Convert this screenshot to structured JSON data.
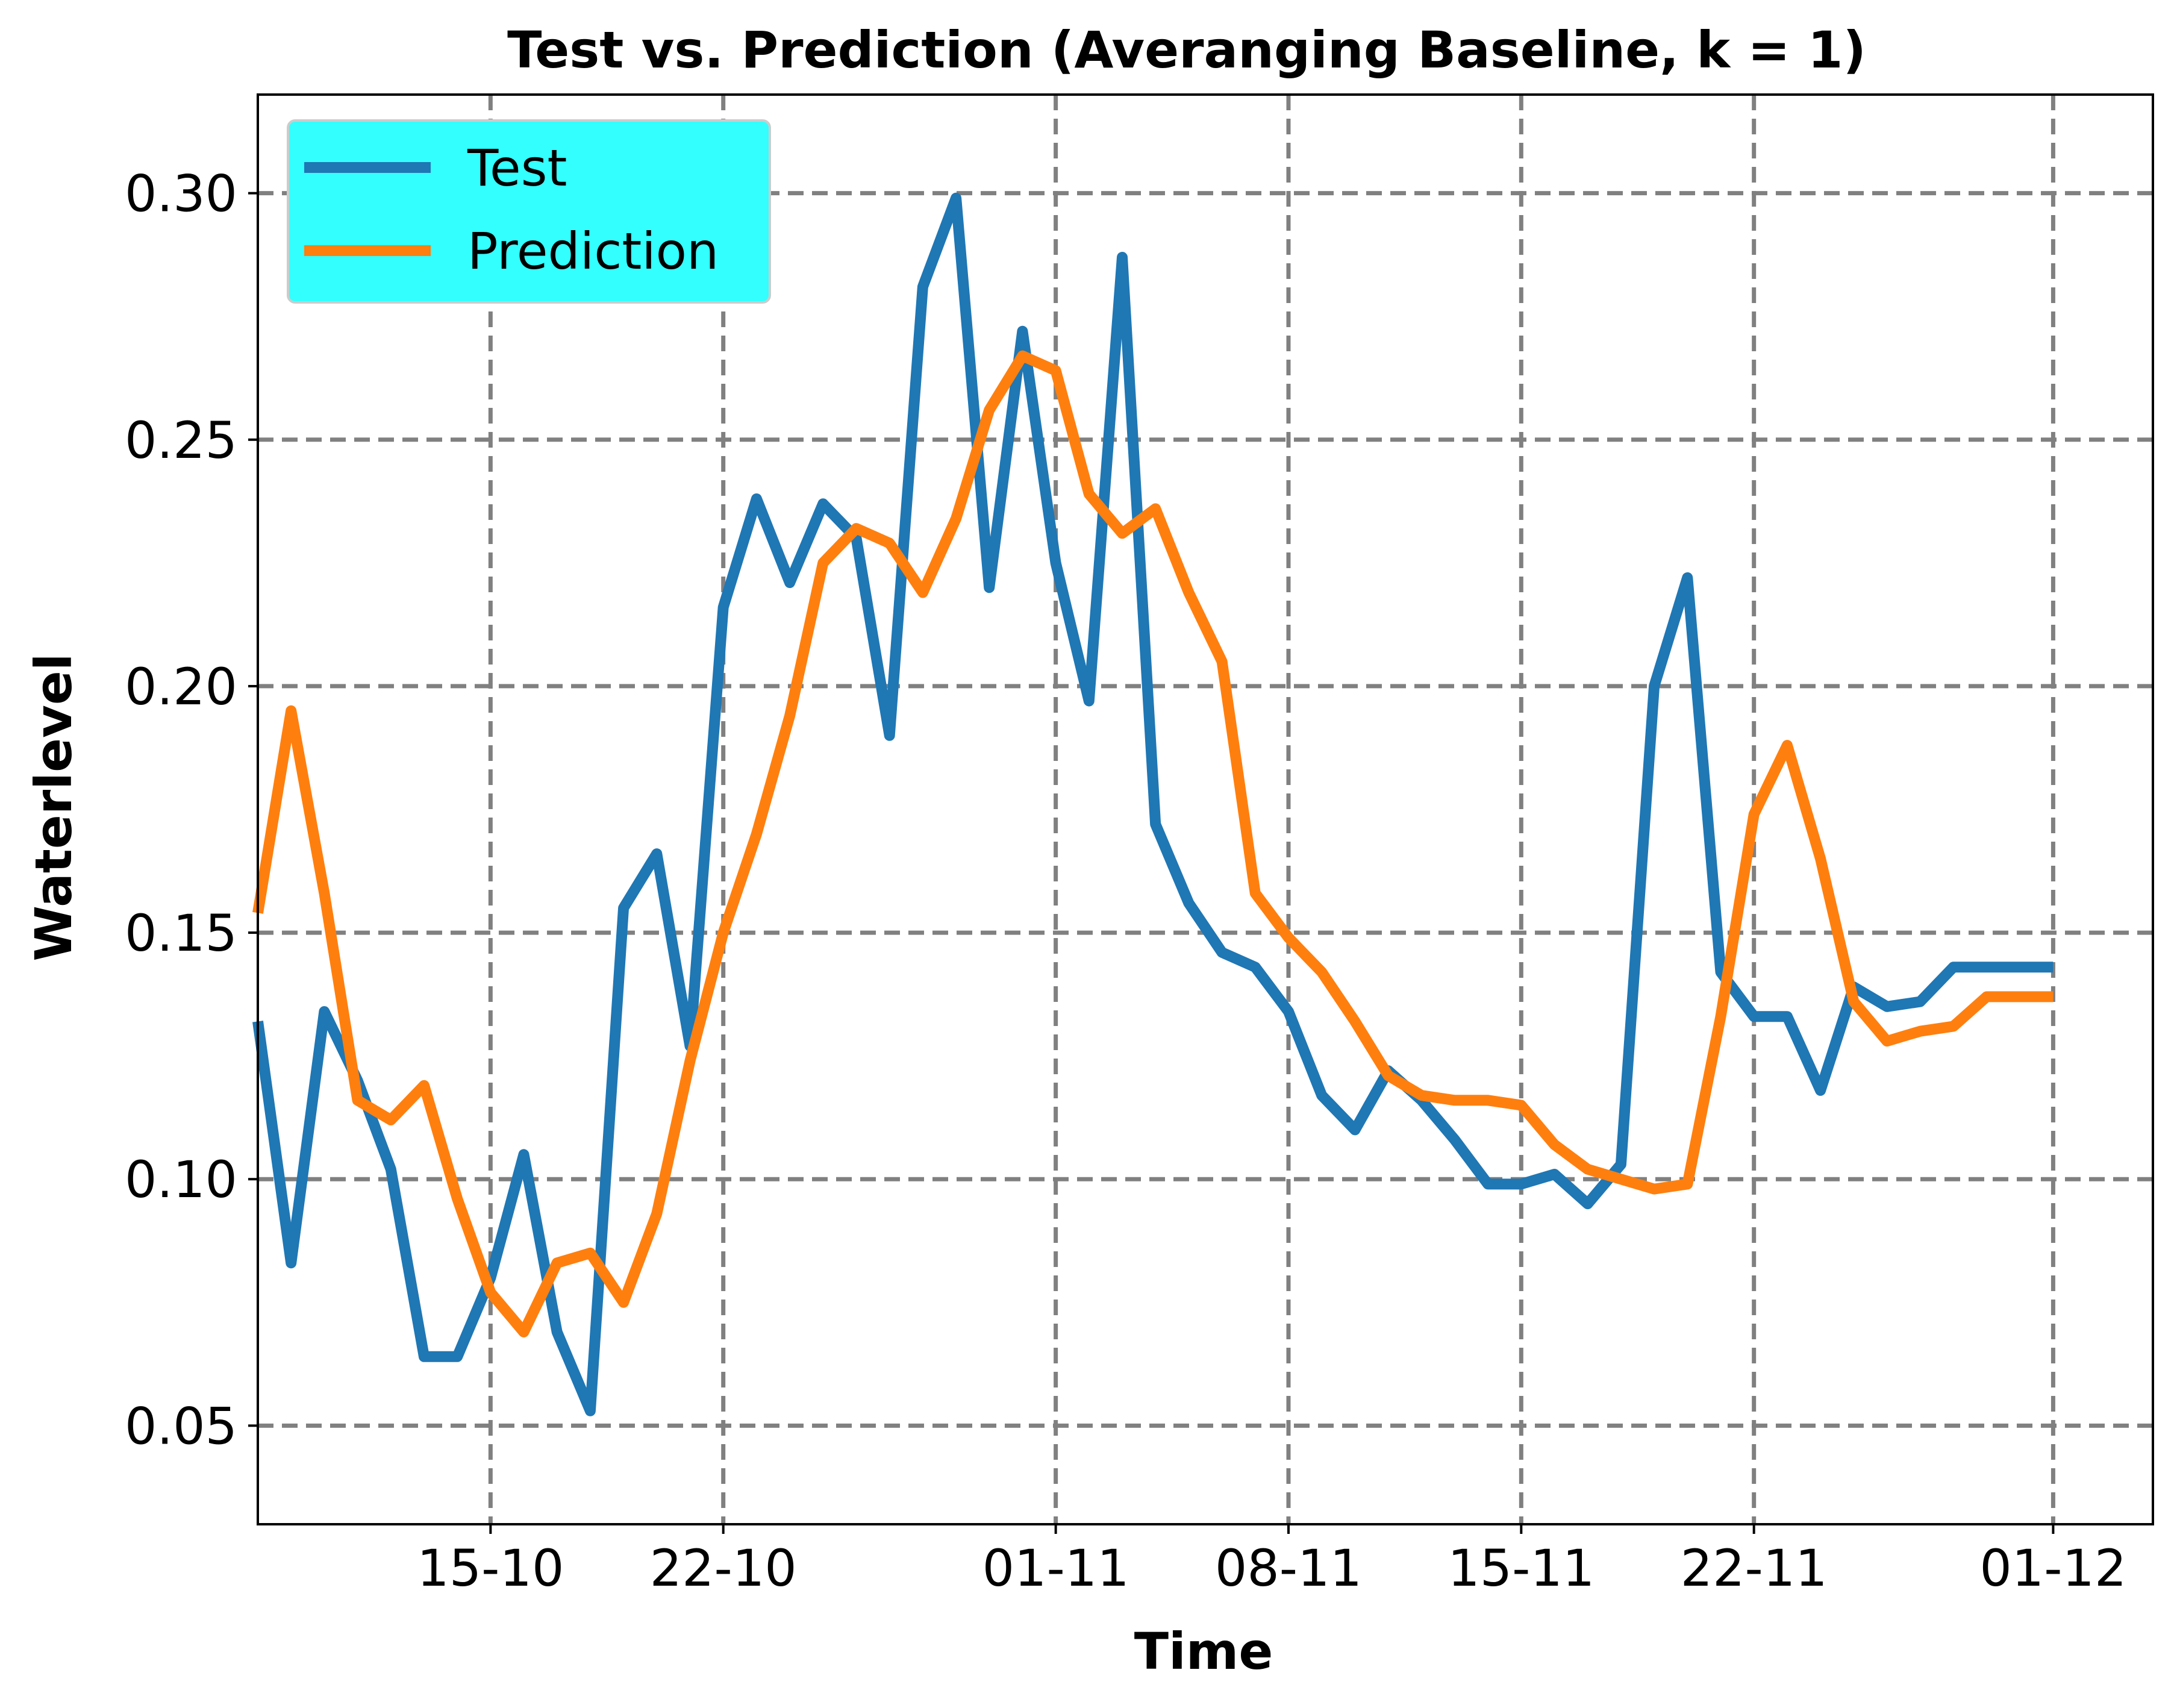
{
  "chart_data": {
    "type": "line",
    "title": "Test vs. Prediction (Averanging Baseline, k = 1)",
    "xlabel": "Time",
    "ylabel": "Waterlevel",
    "x_tick_labels": [
      "15-10",
      "22-10",
      "01-11",
      "08-11",
      "15-11",
      "22-11",
      "01-12"
    ],
    "x_tick_dates": [
      "2022-10-15",
      "2022-10-22",
      "2022-11-01",
      "2022-11-08",
      "2022-11-15",
      "2022-11-22",
      "2022-12-01"
    ],
    "y_ticks": [
      0.05,
      0.1,
      0.15,
      0.2,
      0.25,
      0.3
    ],
    "y_tick_labels": [
      "0.05",
      "0.10",
      "0.15",
      "0.20",
      "0.25",
      "0.30"
    ],
    "xlim": [
      "2022-10-08",
      "2022-12-04"
    ],
    "ylim": [
      0.03,
      0.32
    ],
    "grid": true,
    "grid_style": "dashed",
    "legend_position": "top-left",
    "legend_bg": "#33ffff",
    "x": [
      "2022-10-08",
      "2022-10-09",
      "2022-10-10",
      "2022-10-11",
      "2022-10-12",
      "2022-10-13",
      "2022-10-14",
      "2022-10-15",
      "2022-10-16",
      "2022-10-17",
      "2022-10-18",
      "2022-10-19",
      "2022-10-20",
      "2022-10-21",
      "2022-10-22",
      "2022-10-23",
      "2022-10-24",
      "2022-10-25",
      "2022-10-26",
      "2022-10-27",
      "2022-10-28",
      "2022-10-29",
      "2022-10-30",
      "2022-10-31",
      "2022-11-01",
      "2022-11-02",
      "2022-11-03",
      "2022-11-04",
      "2022-11-05",
      "2022-11-06",
      "2022-11-07",
      "2022-11-08",
      "2022-11-09",
      "2022-11-10",
      "2022-11-11",
      "2022-11-12",
      "2022-11-13",
      "2022-11-14",
      "2022-11-15",
      "2022-11-16",
      "2022-11-17",
      "2022-11-18",
      "2022-11-19",
      "2022-11-20",
      "2022-11-21",
      "2022-11-22",
      "2022-11-23",
      "2022-11-24",
      "2022-11-25",
      "2022-11-26",
      "2022-11-27",
      "2022-11-28",
      "2022-11-29",
      "2022-11-30",
      "2022-12-01"
    ],
    "series": [
      {
        "name": "Test",
        "color": "#1f77b4",
        "values": [
          0.132,
          0.083,
          0.134,
          0.12,
          0.102,
          0.064,
          0.064,
          0.08,
          0.105,
          0.069,
          0.053,
          0.155,
          0.166,
          0.127,
          0.216,
          0.238,
          0.221,
          0.237,
          0.23,
          0.19,
          0.281,
          0.299,
          0.22,
          0.272,
          0.225,
          0.197,
          0.287,
          0.172,
          0.156,
          0.146,
          0.143,
          0.134,
          0.117,
          0.11,
          0.122,
          0.116,
          0.108,
          0.099,
          0.099,
          0.101,
          0.095,
          0.103,
          0.2,
          0.222,
          0.142,
          0.133,
          0.133,
          0.118,
          0.139,
          0.135,
          0.136,
          0.143,
          0.143,
          0.143,
          0.143
        ]
      },
      {
        "name": "Prediction",
        "color": "#ff7f0e",
        "values": [
          0.154,
          0.195,
          0.158,
          0.116,
          0.112,
          0.119,
          0.096,
          0.077,
          0.069,
          0.083,
          0.085,
          0.075,
          0.093,
          0.124,
          0.15,
          0.17,
          0.194,
          0.225,
          0.232,
          0.229,
          0.219,
          0.234,
          0.256,
          0.267,
          0.264,
          0.239,
          0.231,
          0.236,
          0.219,
          0.205,
          0.158,
          0.149,
          0.142,
          0.132,
          0.121,
          0.117,
          0.116,
          0.116,
          0.115,
          0.107,
          0.102,
          0.1,
          0.098,
          0.099,
          0.133,
          0.174,
          0.188,
          0.165,
          0.136,
          0.128,
          0.13,
          0.131,
          0.137,
          0.137,
          0.137
        ]
      }
    ]
  }
}
